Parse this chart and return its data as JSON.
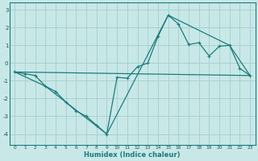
{
  "xlabel": "Humidex (Indice chaleur)",
  "line_color": "#1e7b7b",
  "bg_color": "#c8e8e8",
  "grid_color": "#aad0d0",
  "xlim": [
    -0.5,
    23.5
  ],
  "ylim": [
    -4.6,
    3.4
  ],
  "yticks": [
    -4,
    -3,
    -2,
    -1,
    0,
    1,
    2,
    3
  ],
  "xticks": [
    0,
    1,
    2,
    3,
    4,
    5,
    6,
    7,
    8,
    9,
    10,
    11,
    12,
    13,
    14,
    15,
    16,
    17,
    18,
    19,
    20,
    21,
    22,
    23
  ],
  "line1_x": [
    0,
    1,
    2,
    3,
    4,
    5,
    6,
    7,
    8,
    9,
    10,
    11,
    12,
    13,
    14,
    15,
    16,
    17,
    18,
    19,
    20,
    21,
    22,
    23
  ],
  "line1_y": [
    -0.5,
    -0.6,
    -0.7,
    -1.3,
    -1.6,
    -2.2,
    -2.7,
    -3.0,
    -3.5,
    -4.0,
    -0.8,
    -0.85,
    -0.2,
    0.0,
    1.5,
    2.7,
    2.2,
    1.05,
    1.15,
    0.4,
    0.95,
    1.0,
    -0.3,
    -0.7
  ],
  "line2_x": [
    0,
    23
  ],
  "line2_y": [
    -0.5,
    -0.7
  ],
  "line3_x": [
    0,
    3,
    9,
    15,
    21,
    23
  ],
  "line3_y": [
    -0.5,
    -1.3,
    -4.0,
    2.7,
    1.0,
    -0.7
  ]
}
